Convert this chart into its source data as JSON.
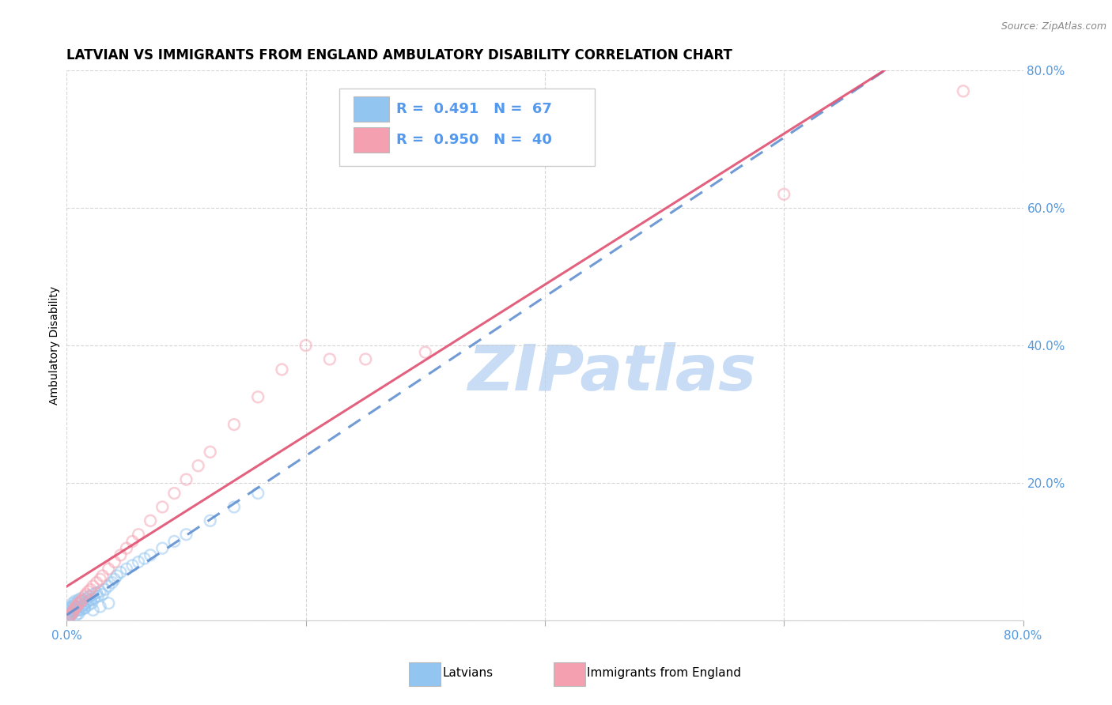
{
  "title": "LATVIAN VS IMMIGRANTS FROM ENGLAND AMBULATORY DISABILITY CORRELATION CHART",
  "source": "Source: ZipAtlas.com",
  "ylabel": "Ambulatory Disability",
  "xlim": [
    0.0,
    0.8
  ],
  "ylim": [
    0.0,
    0.8
  ],
  "xticks": [
    0.0,
    0.2,
    0.4,
    0.6,
    0.8
  ],
  "yticks": [
    0.0,
    0.2,
    0.4,
    0.6,
    0.8
  ],
  "xticklabels": [
    "0.0%",
    "",
    "",
    "",
    "80.0%"
  ],
  "yticklabels": [
    "",
    "20.0%",
    "40.0%",
    "60.0%",
    "80.0%"
  ],
  "latvian_color": "#92c5f0",
  "england_color": "#f4a0b0",
  "latvian_line_color": "#6090d0",
  "england_line_color": "#e05070",
  "legend_R_N_color": "#5599ee",
  "latvian_R": 0.491,
  "latvian_N": 67,
  "england_R": 0.95,
  "england_N": 40,
  "watermark": "ZIPatlas",
  "watermark_color": "#c8ddf5",
  "legend_label_latvian": "Latvians",
  "legend_label_england": "Immigrants from England",
  "latvian_scatter_x": [
    0.001,
    0.002,
    0.002,
    0.003,
    0.003,
    0.004,
    0.004,
    0.005,
    0.005,
    0.006,
    0.006,
    0.007,
    0.007,
    0.008,
    0.008,
    0.009,
    0.01,
    0.01,
    0.011,
    0.012,
    0.012,
    0.013,
    0.014,
    0.015,
    0.016,
    0.017,
    0.018,
    0.019,
    0.02,
    0.021,
    0.022,
    0.023,
    0.025,
    0.026,
    0.028,
    0.03,
    0.032,
    0.035,
    0.038,
    0.04,
    0.042,
    0.045,
    0.05,
    0.055,
    0.06,
    0.065,
    0.07,
    0.08,
    0.09,
    0.1,
    0.12,
    0.14,
    0.16,
    0.001,
    0.002,
    0.003,
    0.004,
    0.005,
    0.006,
    0.008,
    0.01,
    0.012,
    0.015,
    0.018,
    0.022,
    0.028,
    0.035
  ],
  "latvian_scatter_y": [
    0.005,
    0.01,
    0.015,
    0.012,
    0.018,
    0.008,
    0.02,
    0.015,
    0.025,
    0.012,
    0.022,
    0.018,
    0.028,
    0.015,
    0.025,
    0.02,
    0.015,
    0.03,
    0.025,
    0.02,
    0.032,
    0.028,
    0.022,
    0.018,
    0.025,
    0.032,
    0.028,
    0.035,
    0.03,
    0.025,
    0.038,
    0.032,
    0.04,
    0.035,
    0.042,
    0.038,
    0.045,
    0.05,
    0.055,
    0.06,
    0.065,
    0.07,
    0.075,
    0.08,
    0.085,
    0.09,
    0.095,
    0.105,
    0.115,
    0.125,
    0.145,
    0.165,
    0.185,
    0.002,
    0.005,
    0.008,
    0.01,
    0.012,
    0.015,
    0.008,
    0.01,
    0.015,
    0.018,
    0.022,
    0.015,
    0.02,
    0.025
  ],
  "england_scatter_x": [
    0.002,
    0.003,
    0.004,
    0.005,
    0.006,
    0.007,
    0.008,
    0.009,
    0.01,
    0.012,
    0.013,
    0.015,
    0.016,
    0.018,
    0.02,
    0.022,
    0.025,
    0.028,
    0.03,
    0.035,
    0.04,
    0.045,
    0.05,
    0.055,
    0.06,
    0.07,
    0.08,
    0.09,
    0.1,
    0.11,
    0.12,
    0.14,
    0.16,
    0.18,
    0.2,
    0.22,
    0.25,
    0.3,
    0.6,
    0.75
  ],
  "england_scatter_y": [
    0.005,
    0.008,
    0.01,
    0.012,
    0.015,
    0.018,
    0.02,
    0.022,
    0.025,
    0.028,
    0.03,
    0.035,
    0.038,
    0.042,
    0.045,
    0.05,
    0.055,
    0.06,
    0.065,
    0.075,
    0.085,
    0.095,
    0.105,
    0.115,
    0.125,
    0.145,
    0.165,
    0.185,
    0.205,
    0.225,
    0.245,
    0.285,
    0.325,
    0.365,
    0.4,
    0.38,
    0.38,
    0.39,
    0.62,
    0.77
  ],
  "grid_color": "#cccccc",
  "tick_color": "#5599dd",
  "title_fontsize": 12,
  "axis_label_fontsize": 10,
  "tick_fontsize": 11,
  "scatter_alpha": 0.5,
  "scatter_size": 100,
  "line_width": 2.2
}
